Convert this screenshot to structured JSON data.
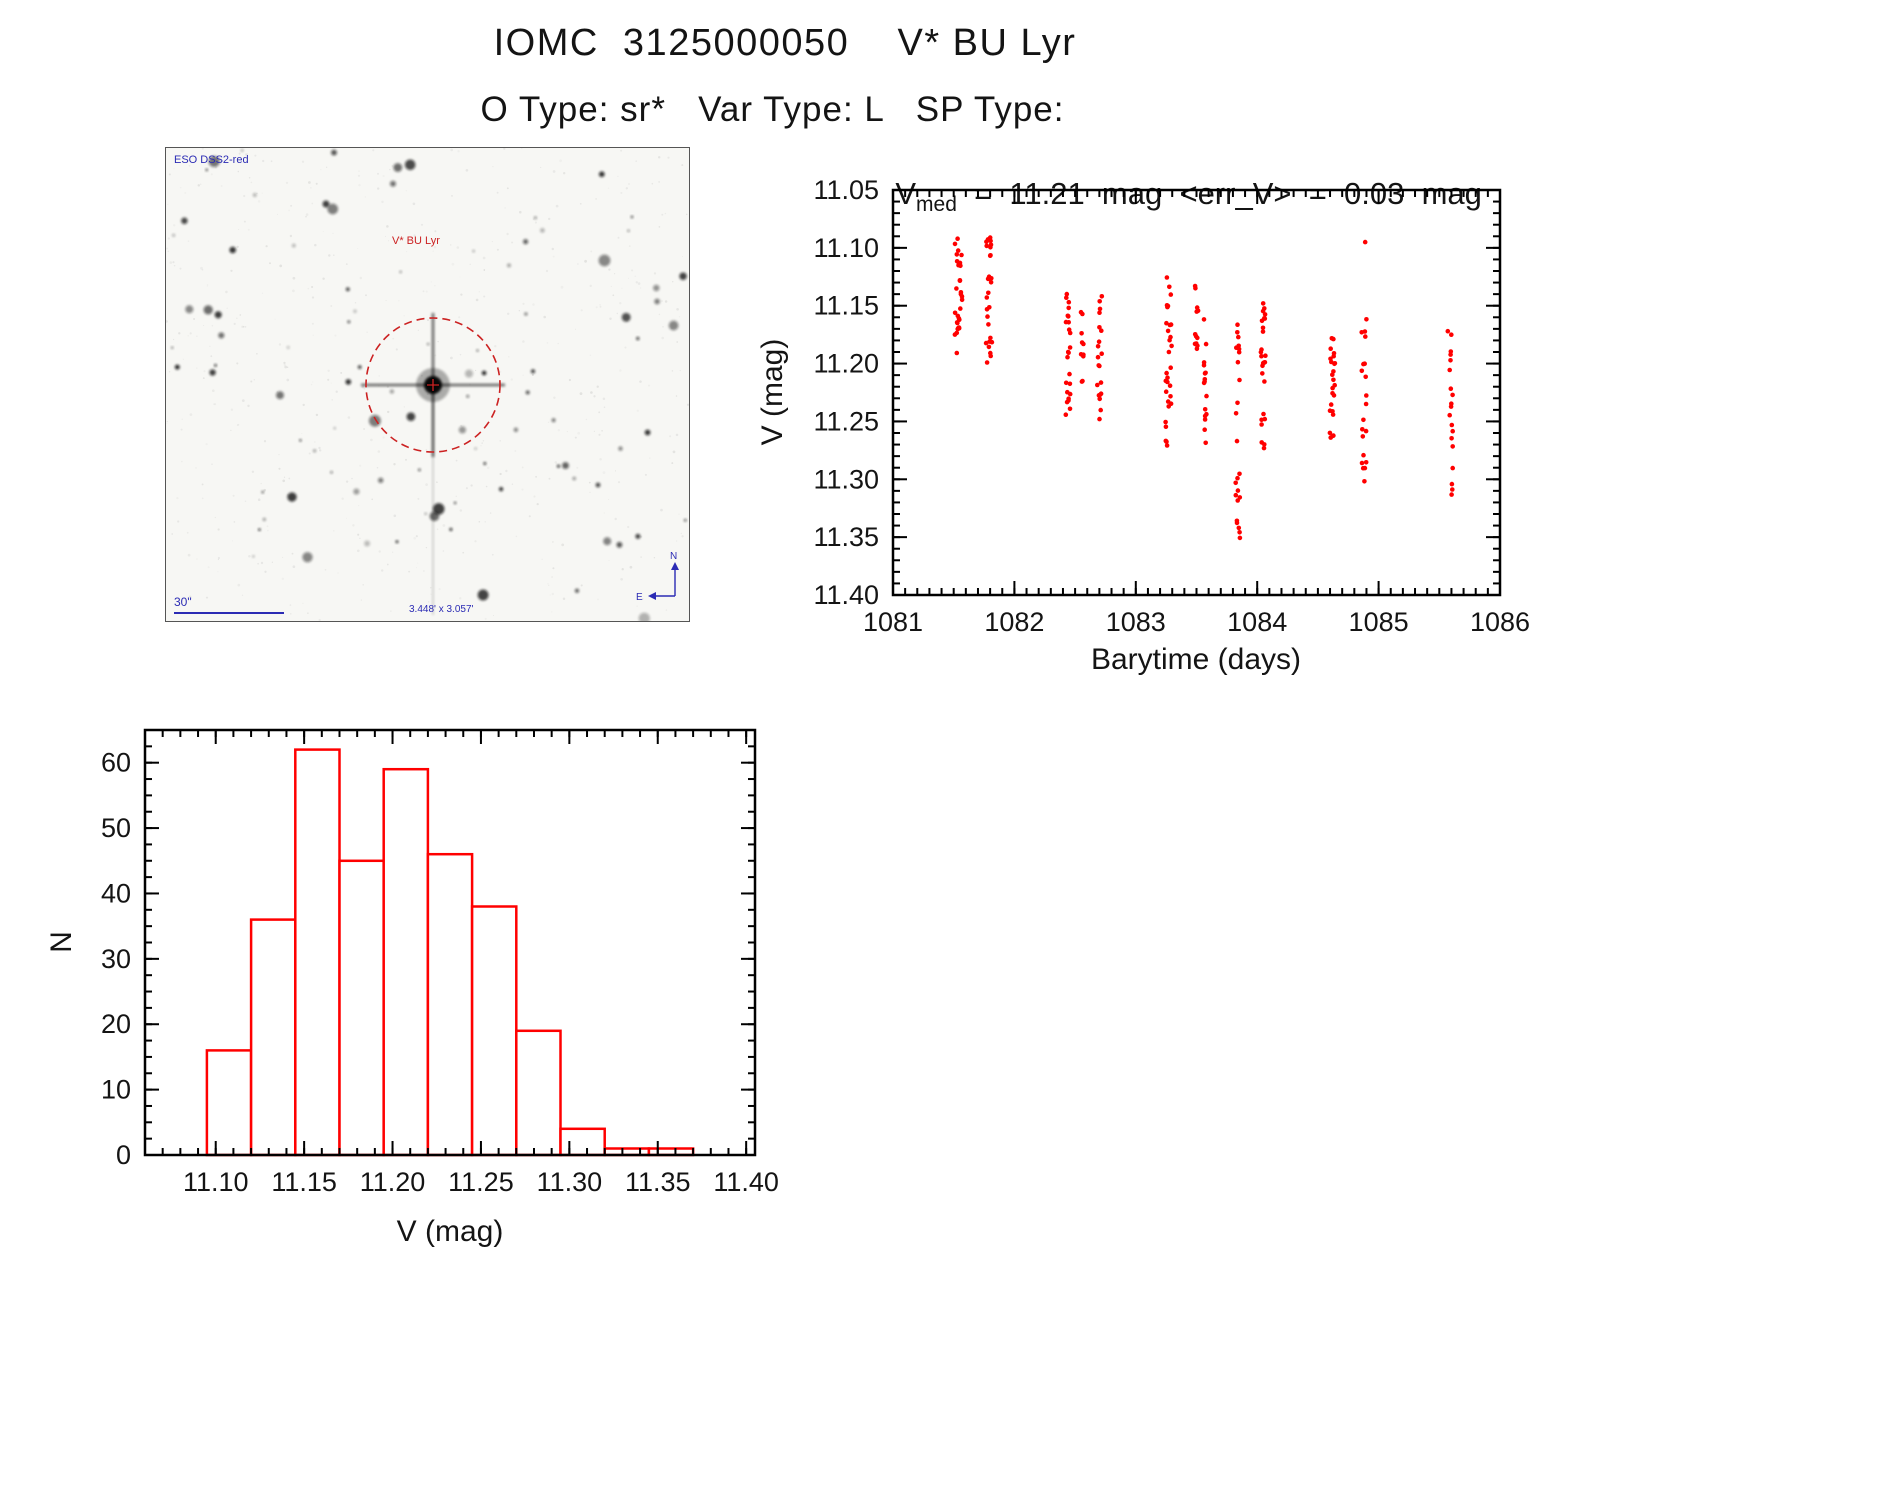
{
  "page": {
    "title": "IOMC  3125000050    V* BU Lyr",
    "subtitle": "O Type: sr*   Var Type: L   SP Type:"
  },
  "finder": {
    "survey_label": "ESO DSS2-red",
    "target_label": "V* BU Lyr",
    "scale_label": "30\"",
    "fov_label": "3.448' x 3.057'",
    "north_label": "N",
    "east_label": "E",
    "annotation_color": "#2b2bb4",
    "marker_color": "#cc2222",
    "star_seed": 12
  },
  "chart_data": [
    {
      "id": "lightcurve",
      "type": "scatter",
      "title": "Vmed = 11.21 mag <err_V> = 0.03 mag",
      "title_parts": {
        "prefix": "V",
        "subscript": "med",
        "suffix": "  =  11.21  mag  <err_V>  =  0.03  mag"
      },
      "xlabel": "Barytime (days)",
      "ylabel": "V (mag)",
      "xlim": [
        1081,
        1086
      ],
      "ylim_top": 11.05,
      "ylim_bottom": 11.4,
      "y_inverted": true,
      "xticks": [
        1081,
        1082,
        1083,
        1084,
        1085,
        1086
      ],
      "yticks": [
        11.05,
        11.1,
        11.15,
        11.2,
        11.25,
        11.3,
        11.35,
        11.4
      ],
      "x_minor_step": 0.1,
      "y_minor_step": 0.01,
      "marker_color": "#ff0000",
      "point_seed": 99,
      "clusters": [
        {
          "t": 1081.54,
          "dt": 0.03,
          "v_min": 11.085,
          "v_max": 11.195,
          "n": 30
        },
        {
          "t": 1081.79,
          "dt": 0.025,
          "v_min": 11.09,
          "v_max": 11.2,
          "n": 28
        },
        {
          "t": 1082.44,
          "dt": 0.02,
          "v_min": 11.135,
          "v_max": 11.245,
          "n": 24
        },
        {
          "t": 1082.56,
          "dt": 0.012,
          "v_min": 11.15,
          "v_max": 11.225,
          "n": 10
        },
        {
          "t": 1082.7,
          "dt": 0.02,
          "v_min": 11.14,
          "v_max": 11.26,
          "n": 20
        },
        {
          "t": 1083.27,
          "dt": 0.025,
          "v_min": 11.125,
          "v_max": 11.29,
          "n": 30
        },
        {
          "t": 1083.5,
          "dt": 0.015,
          "v_min": 11.13,
          "v_max": 11.19,
          "n": 12
        },
        {
          "t": 1083.57,
          "dt": 0.015,
          "v_min": 11.155,
          "v_max": 11.27,
          "n": 16
        },
        {
          "t": 1083.84,
          "dt": 0.02,
          "v_min": 11.165,
          "v_max": 11.355,
          "n": 24
        },
        {
          "t": 1084.05,
          "dt": 0.02,
          "v_min": 11.145,
          "v_max": 11.275,
          "n": 26
        },
        {
          "t": 1084.62,
          "dt": 0.022,
          "v_min": 11.175,
          "v_max": 11.265,
          "n": 24
        },
        {
          "t": 1084.88,
          "dt": 0.02,
          "v_min": 11.16,
          "v_max": 11.31,
          "n": 20
        },
        {
          "t": 1085.6,
          "dt": 0.015,
          "v_min": 11.17,
          "v_max": 11.345,
          "n": 18
        }
      ],
      "outliers": [
        {
          "t": 1084.89,
          "v": 11.095
        },
        {
          "t": 1085.57,
          "v": 11.172
        }
      ]
    },
    {
      "id": "histogram",
      "type": "bar",
      "xlabel": "V (mag)",
      "ylabel": "N",
      "xlim": [
        11.06,
        11.405
      ],
      "ylim": [
        0,
        65
      ],
      "xticks": [
        11.1,
        11.15,
        11.2,
        11.25,
        11.3,
        11.35,
        11.4
      ],
      "yticks": [
        0,
        10,
        20,
        30,
        40,
        50,
        60
      ],
      "x_minor_step": 0.01,
      "y_minor_step": 2.5,
      "bar_color": "#ff0000",
      "bin_start": 11.095,
      "bin_width": 0.025,
      "counts": [
        16,
        36,
        62,
        45,
        59,
        46,
        38,
        19,
        4,
        1,
        1
      ]
    }
  ]
}
